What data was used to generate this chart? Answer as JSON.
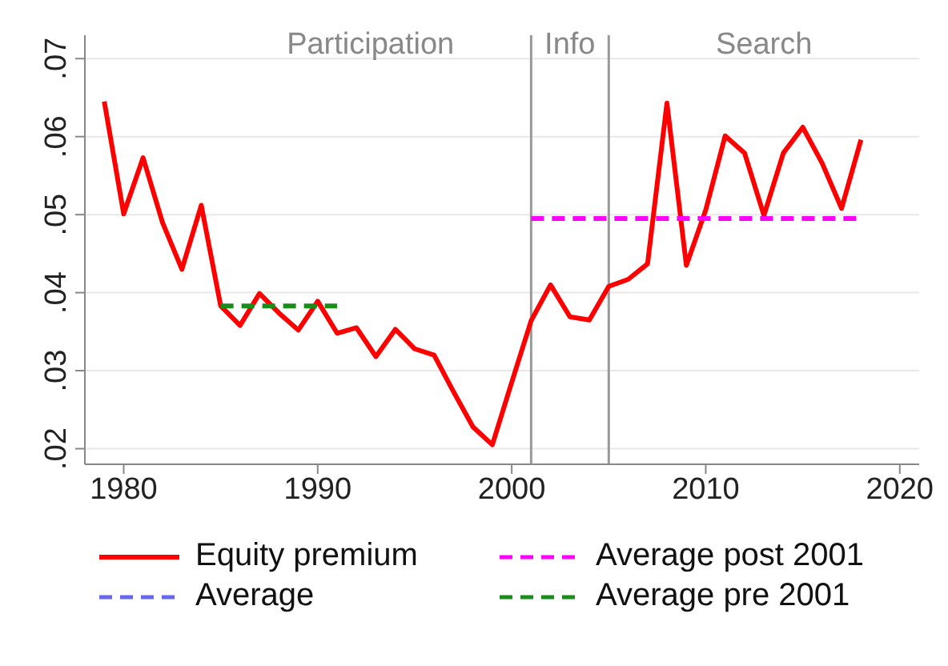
{
  "chart_data": {
    "type": "line",
    "xlim": [
      1978,
      2021
    ],
    "ylim": [
      0.018,
      0.073
    ],
    "xticks": [
      1980,
      1990,
      2000,
      2010,
      2020
    ],
    "yticks": [
      {
        "value": 0.02,
        "label": ".02"
      },
      {
        "value": 0.03,
        "label": ".03"
      },
      {
        "value": 0.04,
        "label": ".04"
      },
      {
        "value": 0.05,
        "label": ".05"
      },
      {
        "value": 0.06,
        "label": ".06"
      },
      {
        "value": 0.07,
        "label": ".07"
      }
    ],
    "grid": "y",
    "legend": "bottom",
    "marker": "none",
    "series": [
      {
        "name": "Equity premium",
        "color": "#ff0000",
        "line_style": "solid",
        "x": [
          1979,
          1980,
          1981,
          1982,
          1983,
          1984,
          1985,
          1986,
          1987,
          1988,
          1989,
          1990,
          1991,
          1992,
          1993,
          1994,
          1995,
          1996,
          1997,
          1998,
          1999,
          2000,
          2001,
          2002,
          2003,
          2004,
          2005,
          2006,
          2007,
          2008,
          2009,
          2010,
          2011,
          2012,
          2013,
          2014,
          2015,
          2016,
          2017,
          2018
        ],
        "values": [
          0.0645,
          0.0501,
          0.0573,
          0.049,
          0.043,
          0.0512,
          0.0383,
          0.0358,
          0.0399,
          0.0374,
          0.0352,
          0.0389,
          0.0348,
          0.0355,
          0.0318,
          0.0353,
          0.0328,
          0.032,
          0.0273,
          0.0228,
          0.0205,
          0.0285,
          0.0364,
          0.041,
          0.0369,
          0.0365,
          0.0408,
          0.0417,
          0.0437,
          0.0643,
          0.0435,
          0.0506,
          0.0601,
          0.0579,
          0.0499,
          0.0579,
          0.0612,
          0.0566,
          0.0508,
          0.0596
        ]
      },
      {
        "name": "Average post 2001",
        "color": "#ff00ff",
        "line_style": "dashed",
        "x": [
          2001,
          2018
        ],
        "values": [
          0.0495,
          0.0495
        ]
      },
      {
        "name": "Average",
        "color": "#6666ee",
        "line_style": "dashed"
      },
      {
        "name": "Average pre 2001",
        "color": "#1a8c1a",
        "line_style": "dashed",
        "x": [
          1985,
          1991
        ],
        "values": [
          0.0383,
          0.0383
        ]
      }
    ],
    "ref_lines": [
      {
        "axis": "x",
        "value": 2001,
        "color": "#999999"
      },
      {
        "axis": "x",
        "value": 2005,
        "color": "#999999"
      }
    ],
    "annotations": [
      "Participation",
      "Info",
      "Search"
    ]
  }
}
